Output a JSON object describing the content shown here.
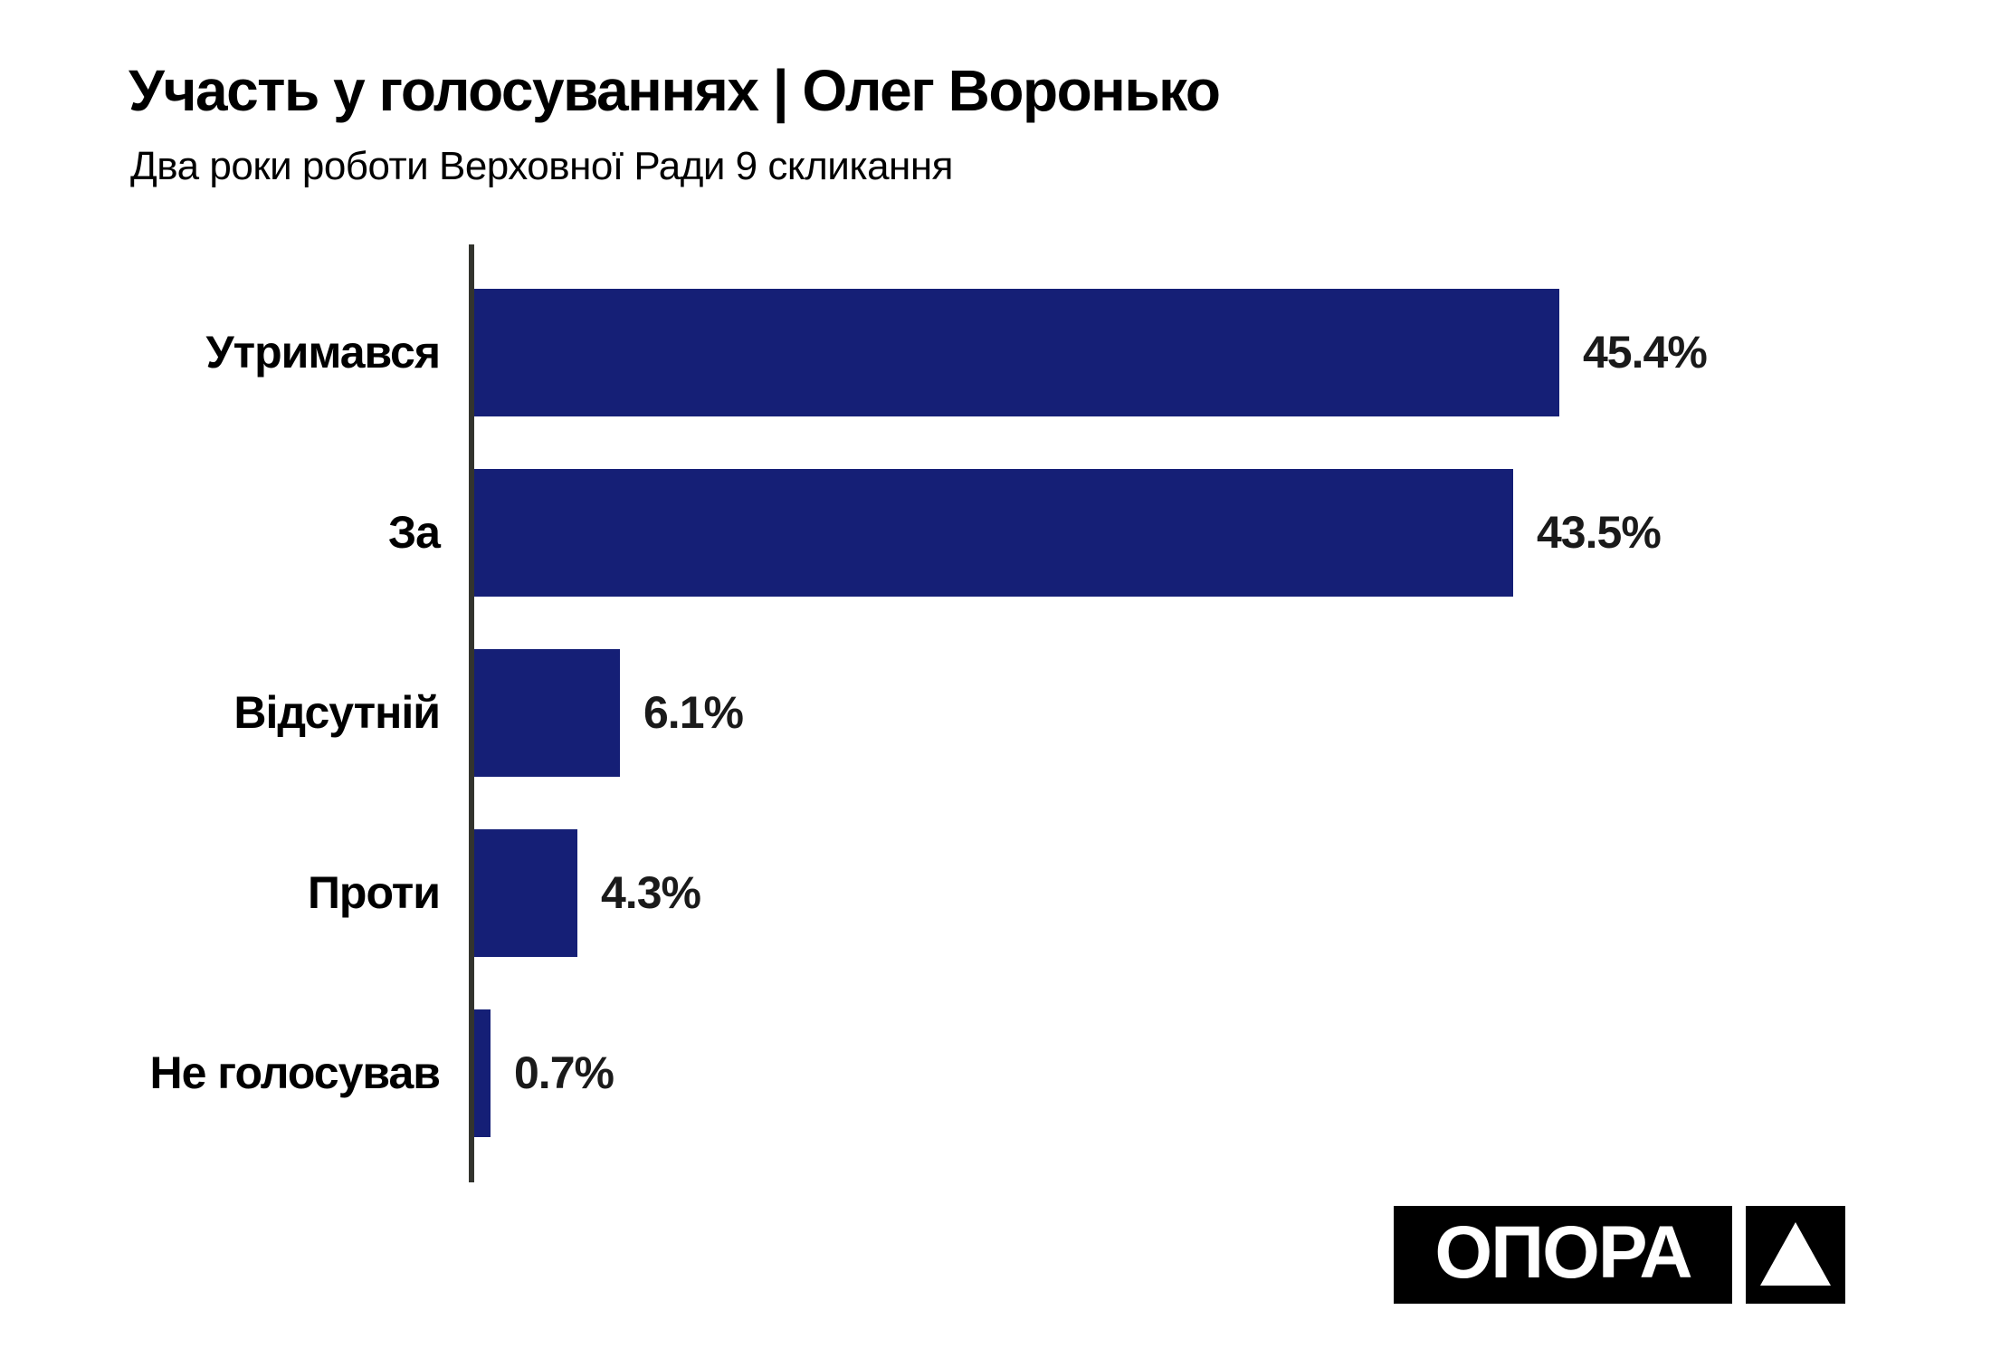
{
  "header": {
    "title": "Участь у голосуваннях | Олег Воронько",
    "subtitle": "Два роки роботи Верховної Ради 9 скликання"
  },
  "chart_data": {
    "type": "bar",
    "orientation": "horizontal",
    "title": "Участь у голосуваннях | Олег Воронько",
    "subtitle": "Два роки роботи Верховної Ради 9 скликання",
    "categories": [
      "Утримався",
      "За",
      "Відсутній",
      "Проти",
      "Не голосував"
    ],
    "values": [
      45.4,
      43.5,
      6.1,
      4.3,
      0.7
    ],
    "value_labels": [
      "45.4%",
      "43.5%",
      "6.1%",
      "4.3%",
      "0.7%"
    ],
    "xlabel": "",
    "ylabel": "",
    "xlim": [
      0,
      50
    ],
    "grid": false,
    "legend": null,
    "bar_color": "#151f76",
    "axis_color": "#33342e",
    "label_color": "#000000",
    "value_label_color": "#1a1a1a"
  },
  "logo": {
    "text": "ОПОРА",
    "bg_color": "#000000",
    "fg_color": "#ffffff"
  }
}
